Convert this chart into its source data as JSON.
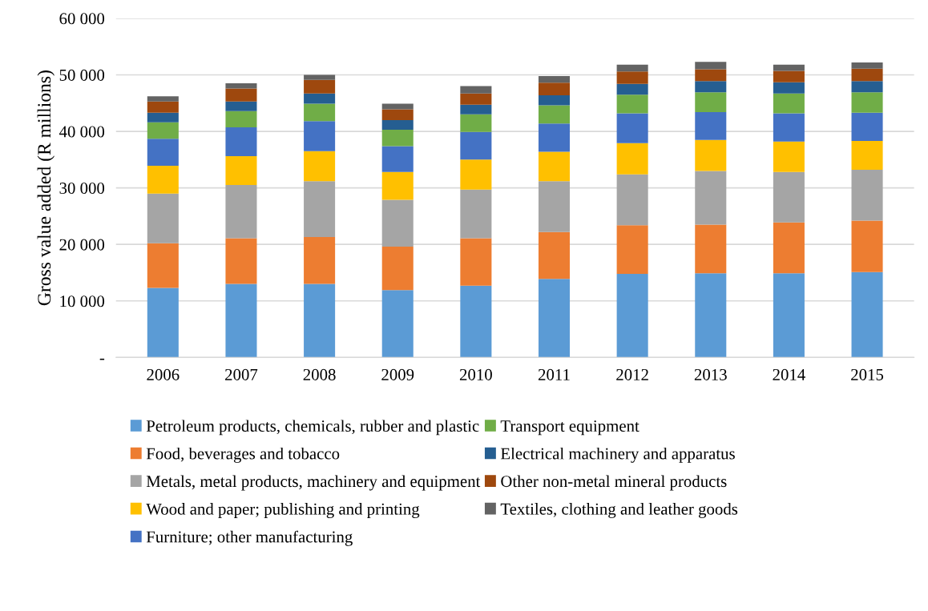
{
  "chart_data": {
    "type": "bar",
    "stacked": true,
    "ylabel": "Gross value added (R millions)",
    "categories": [
      "2006",
      "2007",
      "2008",
      "2009",
      "2010",
      "2011",
      "2012",
      "2013",
      "2014",
      "2015"
    ],
    "series": [
      {
        "name": "Petroleum products, chemicals, rubber and plastic",
        "color": "#5b9bd5",
        "values": [
          12300,
          13000,
          13000,
          11900,
          12700,
          13900,
          14800,
          14900,
          14900,
          15100
        ]
      },
      {
        "name": "Food, beverages and tobacco",
        "color": "#ed7d31",
        "values": [
          7900,
          8100,
          8300,
          7700,
          8400,
          8300,
          8600,
          8600,
          9000,
          9100
        ]
      },
      {
        "name": "Metals, metal products, machinery and equipment",
        "color": "#a5a5a5",
        "values": [
          8800,
          9400,
          9900,
          8300,
          8600,
          9000,
          9000,
          9500,
          8900,
          9000
        ]
      },
      {
        "name": "Wood and paper; publishing and printing",
        "color": "#ffc000",
        "values": [
          4900,
          5100,
          5300,
          4900,
          5300,
          5200,
          5500,
          5500,
          5400,
          5100
        ]
      },
      {
        "name": "Furniture; other manufacturing",
        "color": "#4472c4",
        "values": [
          4800,
          5100,
          5300,
          4600,
          4900,
          5000,
          5300,
          4900,
          5000,
          5000
        ]
      },
      {
        "name": "Transport equipment",
        "color": "#70ad47",
        "values": [
          2900,
          2900,
          3100,
          2900,
          3100,
          3200,
          3300,
          3500,
          3500,
          3600
        ]
      },
      {
        "name": "Electrical machinery and apparatus",
        "color": "#255e91",
        "values": [
          1700,
          1700,
          1800,
          1700,
          1700,
          1800,
          1900,
          2000,
          2000,
          2000
        ]
      },
      {
        "name": "Other non-metal mineral products",
        "color": "#9e480e",
        "values": [
          2000,
          2300,
          2400,
          1900,
          2000,
          2200,
          2200,
          2100,
          2000,
          2200
        ]
      },
      {
        "name": "Textiles, clothing and leather goods",
        "color": "#636363",
        "values": [
          900,
          900,
          900,
          1000,
          1300,
          1200,
          1200,
          1300,
          1100,
          1100
        ]
      }
    ],
    "ylim": [
      0,
      60000
    ],
    "yticks": [
      {
        "value": 0,
        "label": "-"
      },
      {
        "value": 10000,
        "label": "10 000"
      },
      {
        "value": 20000,
        "label": "20 000"
      },
      {
        "value": 30000,
        "label": "30 000"
      },
      {
        "value": 40000,
        "label": "40 000"
      },
      {
        "value": 50000,
        "label": "50 000"
      },
      {
        "value": 60000,
        "label": "60 000"
      }
    ],
    "grid": "y",
    "legend": "bottom"
  }
}
